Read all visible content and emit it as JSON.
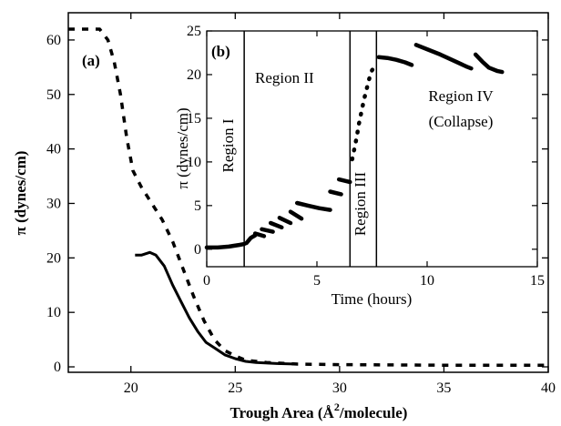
{
  "chart_data": [
    {
      "panel": "(a)",
      "type": "line",
      "xlabel_main": "Trough Area (Å",
      "xlabel_sup": "2",
      "xlabel_tail": "/molecule)",
      "ylabel": "π (dynes/cm)",
      "xlim": [
        17,
        40
      ],
      "ylim": [
        -1,
        65
      ],
      "xticks": [
        20,
        25,
        30,
        35,
        40
      ],
      "yticks": [
        0,
        10,
        20,
        30,
        40,
        50,
        60
      ],
      "series": [
        {
          "style": "solid",
          "points": [
            [
              20.2,
              20.5
            ],
            [
              20.5,
              20.5
            ],
            [
              20.9,
              21.0
            ],
            [
              21.2,
              20.5
            ],
            [
              21.6,
              18.5
            ],
            [
              22.0,
              15.0
            ],
            [
              22.4,
              12.0
            ],
            [
              22.8,
              9.0
            ],
            [
              23.2,
              6.5
            ],
            [
              23.6,
              4.5
            ],
            [
              24.0,
              3.5
            ],
            [
              24.5,
              2.2
            ],
            [
              25.0,
              1.5
            ],
            [
              25.5,
              1.0
            ],
            [
              26.0,
              0.8
            ],
            [
              27.0,
              0.6
            ],
            [
              28.0,
              0.5
            ]
          ]
        },
        {
          "style": "dashed",
          "points": [
            [
              17.0,
              62.0
            ],
            [
              18.0,
              62.0
            ],
            [
              18.5,
              62.0
            ],
            [
              18.9,
              60.0
            ],
            [
              19.2,
              56.0
            ],
            [
              19.5,
              50.0
            ],
            [
              19.8,
              42.0
            ],
            [
              20.1,
              36.0
            ],
            [
              20.5,
              33.0
            ],
            [
              21.0,
              30.0
            ],
            [
              21.5,
              27.0
            ],
            [
              22.0,
              23.0
            ],
            [
              22.5,
              18.0
            ],
            [
              23.0,
              13.0
            ],
            [
              23.5,
              8.5
            ],
            [
              24.0,
              5.0
            ],
            [
              24.5,
              3.0
            ],
            [
              25.0,
              2.0
            ],
            [
              25.5,
              1.2
            ],
            [
              26.5,
              0.8
            ],
            [
              28.0,
              0.5
            ],
            [
              30.0,
              0.4
            ],
            [
              35.0,
              0.3
            ],
            [
              40.0,
              0.3
            ]
          ]
        }
      ]
    },
    {
      "panel": "(b)",
      "type": "scatter",
      "xlabel": "Time (hours)",
      "ylabel": "π (dynes/cm)",
      "xlim": [
        0,
        15
      ],
      "ylim": [
        -2,
        25
      ],
      "xticks": [
        0,
        5,
        10,
        15
      ],
      "yticks": [
        0,
        5,
        10,
        15,
        20,
        25
      ],
      "region_boundaries": [
        1.7,
        6.5,
        7.7
      ],
      "regions": [
        {
          "label": "Region I",
          "orientation": "vertical"
        },
        {
          "label": "Region II",
          "orientation": "horizontal"
        },
        {
          "label": "Region III",
          "orientation": "vertical"
        },
        {
          "label": "Region IV",
          "sublabel": "(Collapse)",
          "orientation": "horizontal"
        }
      ],
      "segments": [
        [
          [
            0.0,
            0.2
          ],
          [
            0.5,
            0.2
          ],
          [
            1.0,
            0.3
          ],
          [
            1.5,
            0.5
          ],
          [
            1.7,
            0.6
          ]
        ],
        [
          [
            1.8,
            0.7
          ],
          [
            2.0,
            1.3
          ],
          [
            2.2,
            1.6
          ]
        ],
        [
          [
            2.2,
            1.8
          ],
          [
            2.6,
            1.5
          ]
        ],
        [
          [
            2.5,
            2.3
          ],
          [
            3.0,
            2.0
          ]
        ],
        [
          [
            2.9,
            3.0
          ],
          [
            3.4,
            2.5
          ]
        ],
        [
          [
            3.3,
            3.6
          ],
          [
            3.8,
            3.0
          ]
        ],
        [
          [
            3.8,
            4.3
          ],
          [
            4.3,
            3.5
          ]
        ],
        [
          [
            4.1,
            5.3
          ],
          [
            4.6,
            5.0
          ],
          [
            5.1,
            4.7
          ],
          [
            5.6,
            4.5
          ]
        ],
        [
          [
            5.6,
            6.6
          ],
          [
            6.1,
            6.3
          ]
        ],
        [
          [
            6.0,
            8.0
          ],
          [
            6.5,
            7.7
          ]
        ],
        [
          [
            6.6,
            10.3
          ],
          [
            6.7,
            11.5
          ],
          [
            6.8,
            12.8
          ],
          [
            6.9,
            14.3
          ],
          [
            7.0,
            15.5
          ],
          [
            7.1,
            16.7
          ],
          [
            7.2,
            17.8
          ],
          [
            7.3,
            18.8
          ],
          [
            7.4,
            19.8
          ],
          [
            7.5,
            20.5
          ],
          [
            7.65,
            21.0
          ]
        ],
        [
          [
            7.8,
            22.0
          ],
          [
            8.2,
            21.9
          ],
          [
            8.6,
            21.7
          ],
          [
            9.0,
            21.4
          ],
          [
            9.3,
            21.1
          ]
        ],
        [
          [
            9.5,
            23.4
          ],
          [
            10.0,
            22.9
          ],
          [
            10.6,
            22.3
          ],
          [
            11.2,
            21.6
          ],
          [
            11.8,
            20.9
          ],
          [
            12.0,
            20.7
          ]
        ],
        [
          [
            12.2,
            22.3
          ],
          [
            12.5,
            21.5
          ],
          [
            12.8,
            20.8
          ],
          [
            13.2,
            20.4
          ],
          [
            13.4,
            20.3
          ]
        ]
      ]
    }
  ]
}
